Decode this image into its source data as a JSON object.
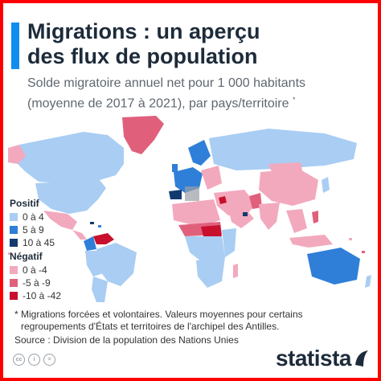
{
  "header": {
    "title_line1": "Migrations : un aperçu",
    "title_line2": "des flux de population",
    "subtitle_line1": "Solde migratoire annuel net pour 1 000 habitants",
    "subtitle_line2": "(moyenne de 2017 à 2021), par pays/territoire",
    "subtitle_mark": "*"
  },
  "legend": {
    "positive": {
      "title": "Positif",
      "items": [
        {
          "label": "0 à 4",
          "color": "#a9cdf3"
        },
        {
          "label": "5 à 9",
          "color": "#2f7fd8"
        },
        {
          "label": "10 à 45",
          "color": "#123a6e"
        }
      ]
    },
    "negative": {
      "title": "Négatif",
      "items": [
        {
          "label": "0 à -4",
          "color": "#f3a9bd"
        },
        {
          "label": "-5 à -9",
          "color": "#e0607c"
        },
        {
          "label": "-10 à -42",
          "color": "#c8102e"
        }
      ]
    }
  },
  "footer": {
    "footnote_line1": "* Migrations forcées et volontaires. Valeurs moyennes pour certains",
    "footnote_line2": "regroupements d'États et territoires de l'archipel des Antilles.",
    "source": "Source : Division de la population des Nations Unies",
    "cc_icons": [
      "cc-icon",
      "by-icon",
      "nd-icon"
    ],
    "cc_labels": [
      "cc",
      "i",
      "="
    ],
    "brand": "statista"
  },
  "colors": {
    "frame": "#ff0000",
    "accent": "#0f8ef0",
    "title": "#1d2b3a"
  }
}
